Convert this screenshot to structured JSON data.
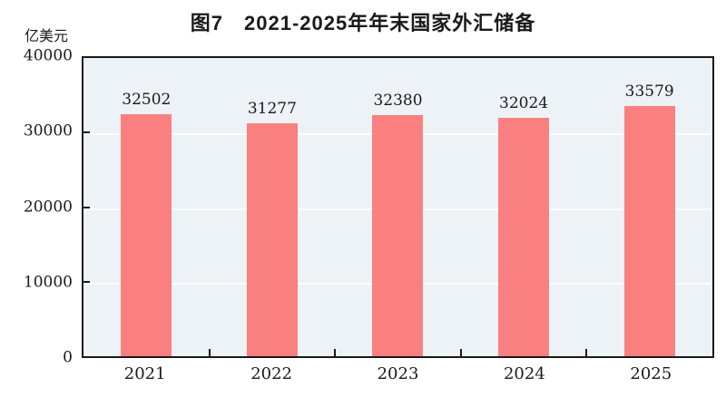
{
  "chart_data": {
    "type": "bar",
    "title": "图7　2021-2025年年末国家外汇储备",
    "ylabel": "亿美元",
    "xlabel": "",
    "categories": [
      "2021",
      "2022",
      "2023",
      "2024",
      "2025"
    ],
    "values": [
      32502,
      31277,
      32380,
      32024,
      33579
    ],
    "ylim": [
      0,
      40000
    ],
    "yticks": [
      0,
      10000,
      20000,
      30000,
      40000
    ],
    "grid": "horizontal white lines at 10000/20000/30000",
    "legend_position": "none",
    "colors": {
      "bar_fill": "#FA8080",
      "plot_background": "#EDF2F6",
      "grid_line": "#FBFDFE",
      "axis_frame": "#1A1A1A",
      "text": "#1A1A1A"
    }
  }
}
